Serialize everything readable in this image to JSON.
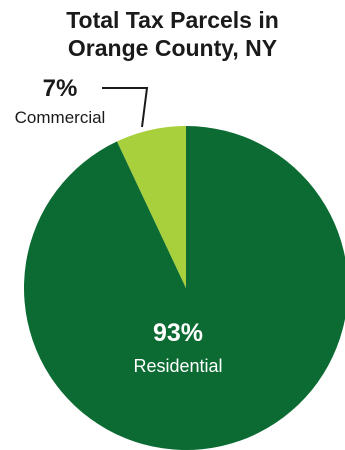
{
  "chart_data": {
    "type": "pie",
    "title_lines": [
      "Total Tax Parcels in",
      "Orange County, NY"
    ],
    "slices": [
      {
        "label": "Residential",
        "value": 93,
        "value_label": "93%",
        "color": "#0b6b32"
      },
      {
        "label": "Commercial",
        "value": 7,
        "value_label": "7%",
        "color": "#a8cf3c"
      }
    ],
    "legend": "none"
  }
}
